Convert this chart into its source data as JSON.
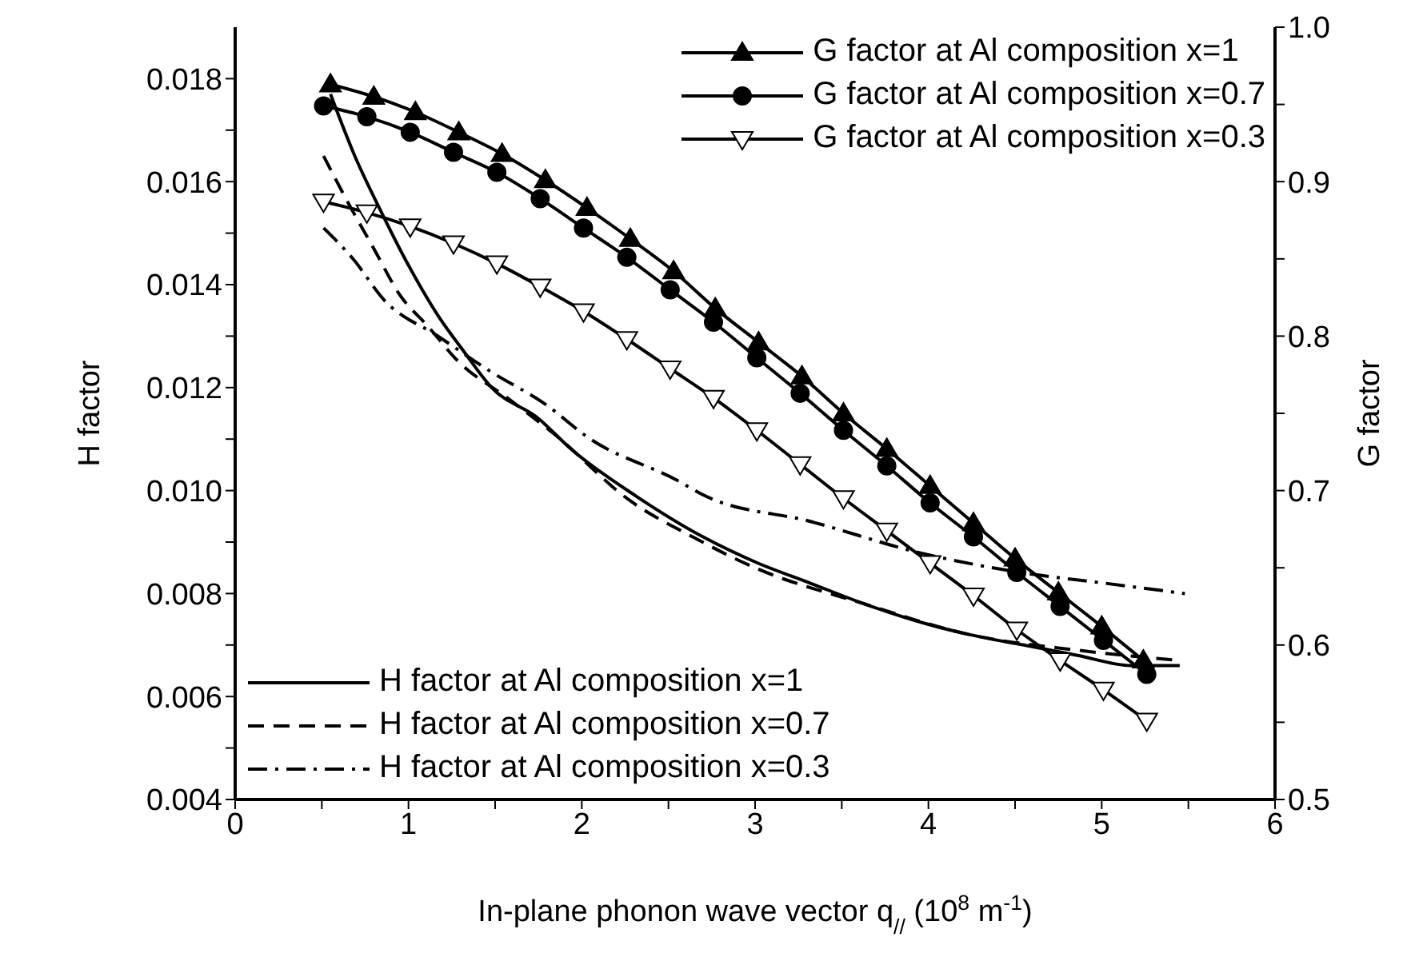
{
  "chart_data": {
    "type": "line",
    "xlabel": "In-plane phonon wave vector q$_{//}$ (10$^{8}$ m$^{-1}$)",
    "ylabel": "H factor",
    "y2label": "G factor",
    "xlim": [
      0,
      6
    ],
    "xticks": [
      0,
      {
        "value": 0.5,
        "label": null
      },
      1,
      {
        "value": 1.5,
        "label": null
      },
      2,
      {
        "value": 2.5,
        "label": null
      },
      3,
      {
        "value": 3.5,
        "label": null
      },
      4,
      {
        "value": 4.5,
        "label": null
      },
      5,
      {
        "value": 5.5,
        "label": null
      },
      6
    ],
    "ylim": [
      0.004,
      0.019
    ],
    "yticks": [
      0.004,
      {
        "value": 0.005,
        "label": null
      },
      0.006,
      {
        "value": 0.007,
        "label": null
      },
      0.008,
      {
        "value": 0.009,
        "label": null
      },
      {
        "value": 0.01,
        "label": "0.010"
      },
      {
        "value": 0.011,
        "label": null
      },
      0.012,
      {
        "value": 0.013,
        "label": null
      },
      0.014,
      {
        "value": 0.015,
        "label": null
      },
      0.016,
      {
        "value": 0.017,
        "label": null
      },
      0.018
    ],
    "y2lim": [
      0.5,
      1.0
    ],
    "y2ticks": [
      0.5,
      {
        "value": 0.55,
        "label": null
      },
      0.6,
      {
        "value": 0.65,
        "label": null
      },
      0.7,
      {
        "value": 0.75,
        "label": null
      },
      0.8,
      {
        "value": 0.85,
        "label": null
      },
      0.9,
      {
        "value": 0.95,
        "label": null
      },
      {
        "value": 1.0,
        "label": "1.0"
      }
    ],
    "grid": false,
    "legend": "top right",
    "series": [
      {
        "name": "G factor at Al composition x=1",
        "color": "#000000",
        "axis": "y2",
        "marker": "triangle",
        "line_style": "solid",
        "x": [
          0.55,
          0.8,
          1.04,
          1.29,
          1.54,
          1.79,
          2.03,
          2.28,
          2.53,
          2.77,
          3.02,
          3.27,
          3.51,
          3.76,
          4.01,
          4.26,
          4.5,
          4.75,
          5.0,
          5.24
        ],
        "values": [
          0.963,
          0.955,
          0.945,
          0.932,
          0.918,
          0.901,
          0.883,
          0.863,
          0.842,
          0.818,
          0.796,
          0.774,
          0.75,
          0.727,
          0.703,
          0.679,
          0.656,
          0.634,
          0.612,
          0.59
        ]
      },
      {
        "name": "G factor at Al composition x=0.7",
        "color": "#000000",
        "axis": "y2",
        "marker": "circle",
        "line_style": "solid",
        "x": [
          0.51,
          0.76,
          1.01,
          1.26,
          1.51,
          1.76,
          2.01,
          2.26,
          2.51,
          2.76,
          3.01,
          3.26,
          3.51,
          3.76,
          4.01,
          4.26,
          4.51,
          4.76,
          5.01,
          5.26
        ],
        "values": [
          0.949,
          0.942,
          0.932,
          0.919,
          0.906,
          0.889,
          0.87,
          0.851,
          0.83,
          0.809,
          0.786,
          0.763,
          0.739,
          0.716,
          0.692,
          0.67,
          0.647,
          0.625,
          0.603,
          0.581
        ]
      },
      {
        "name": "G factor at Al composition x=0.3",
        "color": "#000000",
        "axis": "y2",
        "marker": "triangle-down",
        "line_style": "solid",
        "x": [
          0.51,
          0.76,
          1.01,
          1.26,
          1.51,
          1.76,
          2.01,
          2.26,
          2.51,
          2.76,
          3.01,
          3.26,
          3.51,
          3.76,
          4.01,
          4.26,
          4.51,
          4.76,
          5.01,
          5.26
        ],
        "values": [
          0.887,
          0.88,
          0.871,
          0.86,
          0.847,
          0.832,
          0.816,
          0.798,
          0.779,
          0.76,
          0.739,
          0.717,
          0.695,
          0.674,
          0.653,
          0.632,
          0.61,
          0.59,
          0.571,
          0.551
        ]
      },
      {
        "name": "H factor at Al composition x=1",
        "color": "#000000",
        "axis": "y",
        "marker": "none",
        "line_style": "solid",
        "x": [
          0.55,
          0.69,
          0.83,
          0.98,
          1.17,
          1.32,
          1.48,
          1.75,
          1.94,
          2.31,
          2.7,
          3.01,
          3.32,
          3.63,
          4.0,
          4.24,
          4.55,
          4.86,
          5.17,
          5.45
        ],
        "values": [
          0.0177,
          0.0165,
          0.0155,
          0.0145,
          0.0134,
          0.0127,
          0.012,
          0.0114,
          0.0108,
          0.0099,
          0.0091,
          0.0086,
          0.0082,
          0.0078,
          0.0074,
          0.0072,
          0.007,
          0.0068,
          0.0066,
          0.0066
        ]
      },
      {
        "name": "H factor at Al composition x=0.7",
        "color": "#000000",
        "axis": "y",
        "marker": "none",
        "line_style": "dashed",
        "x": [
          0.51,
          0.65,
          0.8,
          0.95,
          1.11,
          1.29,
          1.57,
          1.84,
          2.28,
          2.64,
          3.0,
          3.63,
          4.24,
          4.86,
          5.45
        ],
        "values": [
          0.0165,
          0.0156,
          0.0147,
          0.0138,
          0.0132,
          0.0125,
          0.0118,
          0.0111,
          0.0098,
          0.0091,
          0.0085,
          0.0078,
          0.0072,
          0.0069,
          0.0067
        ]
      },
      {
        "name": "H factor at Al composition x=0.3",
        "color": "#000000",
        "axis": "y",
        "marker": "none",
        "line_style": "dashdot",
        "x": [
          0.51,
          0.68,
          0.86,
          1.17,
          1.48,
          1.78,
          2.05,
          2.55,
          2.71,
          3.32,
          3.94,
          4.55,
          5.02,
          5.48
        ],
        "values": [
          0.0151,
          0.0145,
          0.0137,
          0.013,
          0.0123,
          0.0117,
          0.011,
          0.0102,
          0.0099,
          0.0094,
          0.0088,
          0.0084,
          0.0082,
          0.008
        ]
      }
    ]
  }
}
